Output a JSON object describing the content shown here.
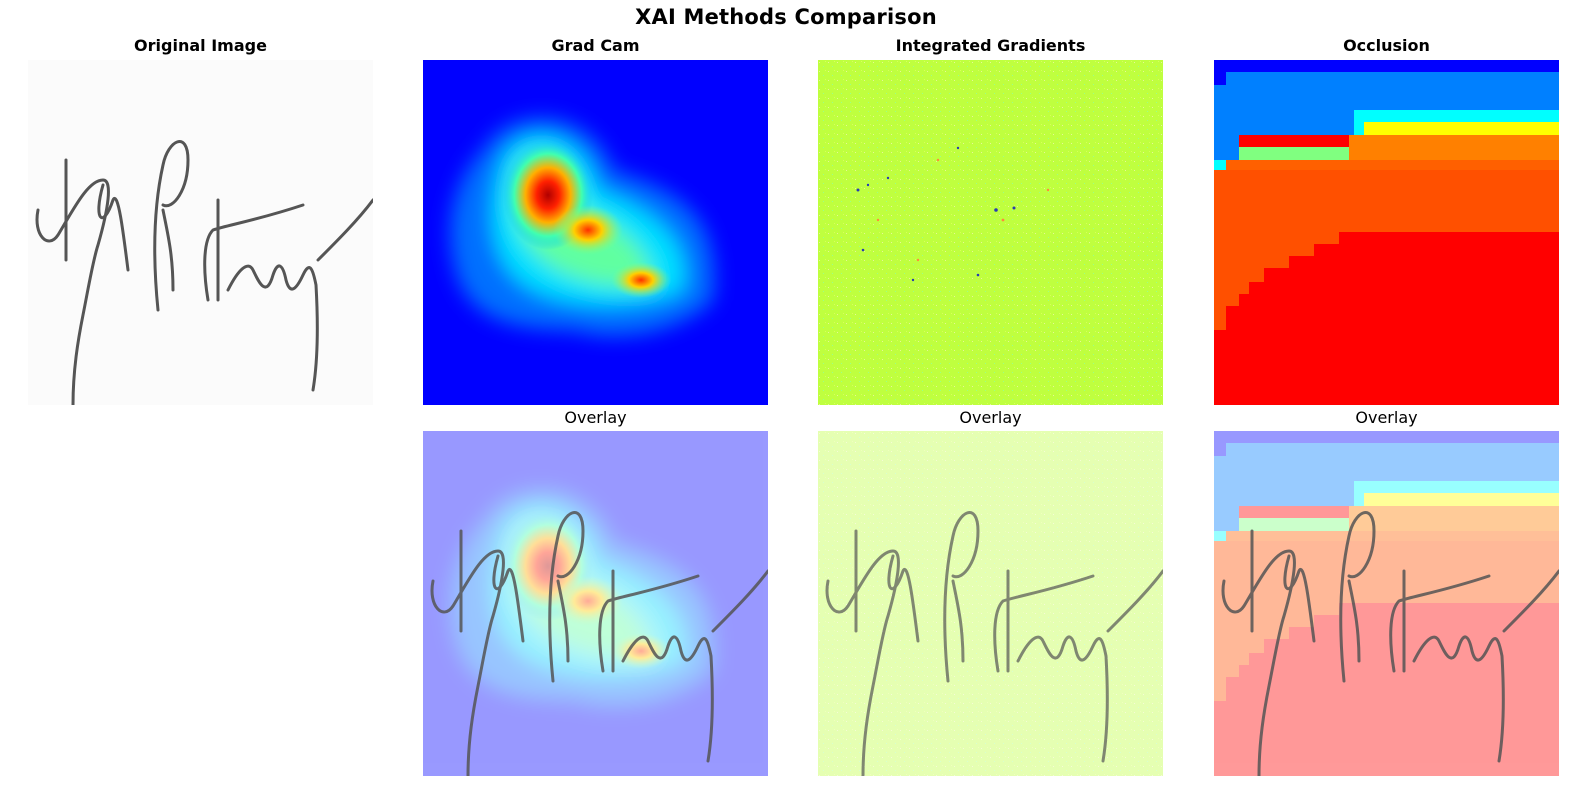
{
  "figure": {
    "title": "XAI Methods Comparison"
  },
  "panels": {
    "original": {
      "title": "Original Image"
    },
    "gradcam": {
      "title": "Grad Cam",
      "overlay_label": "Overlay"
    },
    "integrated_gradients": {
      "title": "Integrated Gradients",
      "overlay_label": "Overlay"
    },
    "occlusion": {
      "title": "Occlusion",
      "overlay_label": "Overlay"
    }
  },
  "colors": {
    "jet_low": "#0000ff",
    "jet_mid": "#00ffff",
    "jet_high": "#ff0000",
    "ig_background": "#bfff3f",
    "signature_ink": "#555555"
  }
}
